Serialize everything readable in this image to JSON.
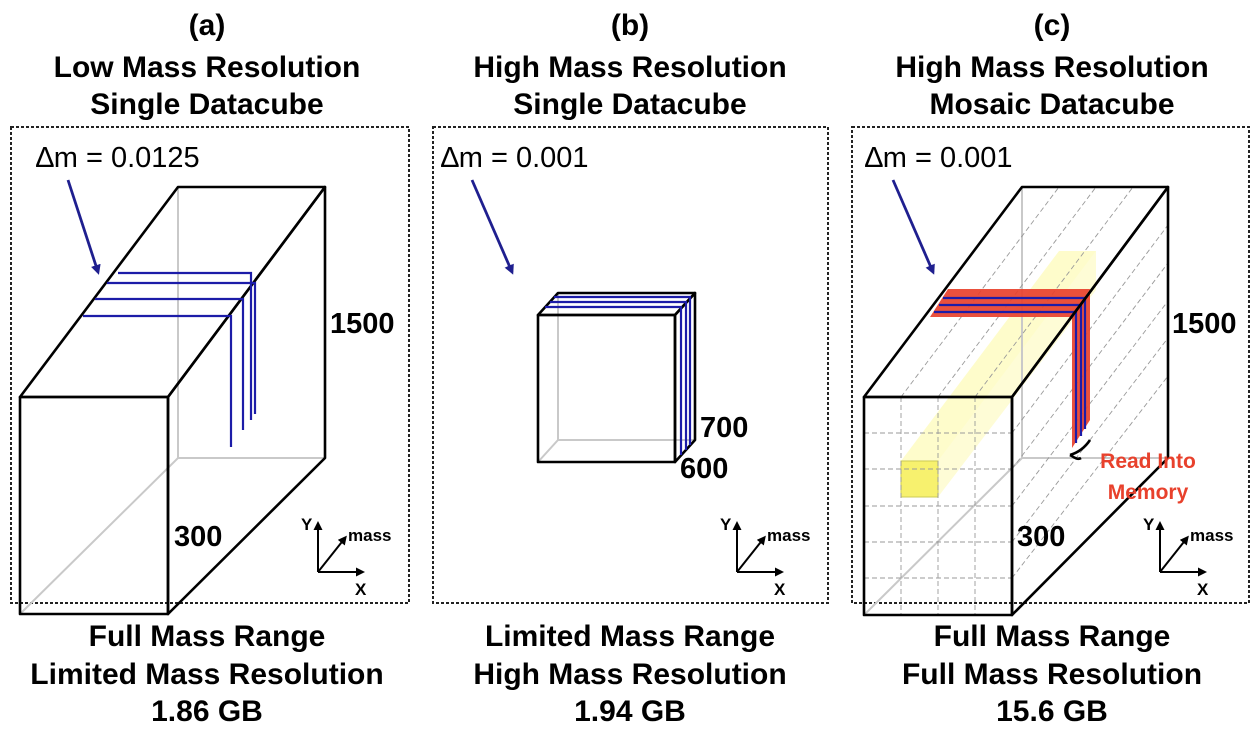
{
  "panels": [
    {
      "label": "(a)",
      "title_line1": "Low Mass Resolution",
      "title_line2": "Single Datacube",
      "delta_m": "∆m = 0.0125",
      "tick_far": "1500",
      "tick_near": "300",
      "axes": {
        "y": "Y",
        "mass": "mass",
        "x": "X"
      },
      "footer_line1": "Full Mass Range",
      "footer_line2": "Limited Mass Resolution",
      "size": "1.86 GB"
    },
    {
      "label": "(b)",
      "title_line1": "High Mass Resolution",
      "title_line2": "Single Datacube",
      "delta_m": "∆m = 0.001",
      "tick_far": "700",
      "tick_near": "600",
      "axes": {
        "y": "Y",
        "mass": "mass",
        "x": "X"
      },
      "footer_line1": "Limited Mass Range",
      "footer_line2": "High Mass Resolution",
      "size": "1.94 GB"
    },
    {
      "label": "(c)",
      "title_line1": "High Mass Resolution",
      "title_line2": "Mosaic Datacube",
      "delta_m": "∆m = 0.001",
      "tick_far": "1500",
      "tick_near": "300",
      "axes": {
        "y": "Y",
        "mass": "mass",
        "x": "X"
      },
      "annotation_line1": "Read Into",
      "annotation_line2": "Memory",
      "footer_line1": "Full Mass Range",
      "footer_line2": "Full Mass Resolution",
      "size": "15.6 GB"
    }
  ],
  "colors": {
    "slice_blue": "#1c1ca8",
    "arrow_blue": "#1f1f8f",
    "read_red": "#e8412c",
    "highlight_yellow": "#fbf56a"
  }
}
